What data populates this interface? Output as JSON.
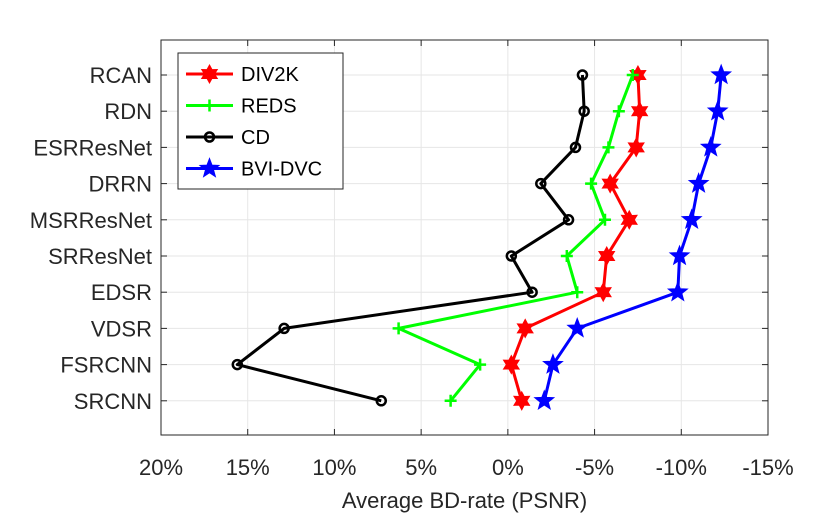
{
  "chart_data": {
    "type": "line",
    "title": "",
    "xlabel": "Average BD-rate (PSNR)",
    "ylabel": "",
    "xlim": [
      20,
      -15
    ],
    "x_ticks": [
      20,
      15,
      10,
      5,
      0,
      -5,
      -10,
      -15
    ],
    "x_tick_labels": [
      "20%",
      "15%",
      "10%",
      "5%",
      "0%",
      "-5%",
      "-10%",
      "-15%"
    ],
    "categories": [
      "RCAN",
      "RDN",
      "ESRResNet",
      "DRRN",
      "MSRResNet",
      "SRResNet",
      "EDSR",
      "VDSR",
      "FSRCNN",
      "SRCNN"
    ],
    "grid": true,
    "legend_position": "top-left",
    "series": [
      {
        "name": "DIV2K",
        "color": "#ff0000",
        "marker": "hexagram",
        "values": [
          -7.5,
          -7.6,
          -7.4,
          -5.9,
          -7.0,
          -5.7,
          -5.5,
          -1.0,
          -0.2,
          -0.8
        ]
      },
      {
        "name": "REDS",
        "color": "#00ff00",
        "marker": "plus",
        "values": [
          -7.2,
          -6.4,
          -5.8,
          -4.8,
          -5.6,
          -3.4,
          -4.0,
          6.3,
          1.6,
          3.3
        ]
      },
      {
        "name": "CD",
        "color": "#000000",
        "marker": "circle",
        "values": [
          -4.3,
          -4.4,
          -3.9,
          -1.9,
          -3.5,
          -0.2,
          -1.4,
          12.9,
          15.6,
          7.3
        ]
      },
      {
        "name": "BVI-DVC",
        "color": "#0000ff",
        "marker": "pentagram",
        "values": [
          -12.3,
          -12.1,
          -11.7,
          -11.0,
          -10.6,
          -9.9,
          -9.8,
          -4.0,
          -2.6,
          -2.1
        ]
      }
    ]
  }
}
